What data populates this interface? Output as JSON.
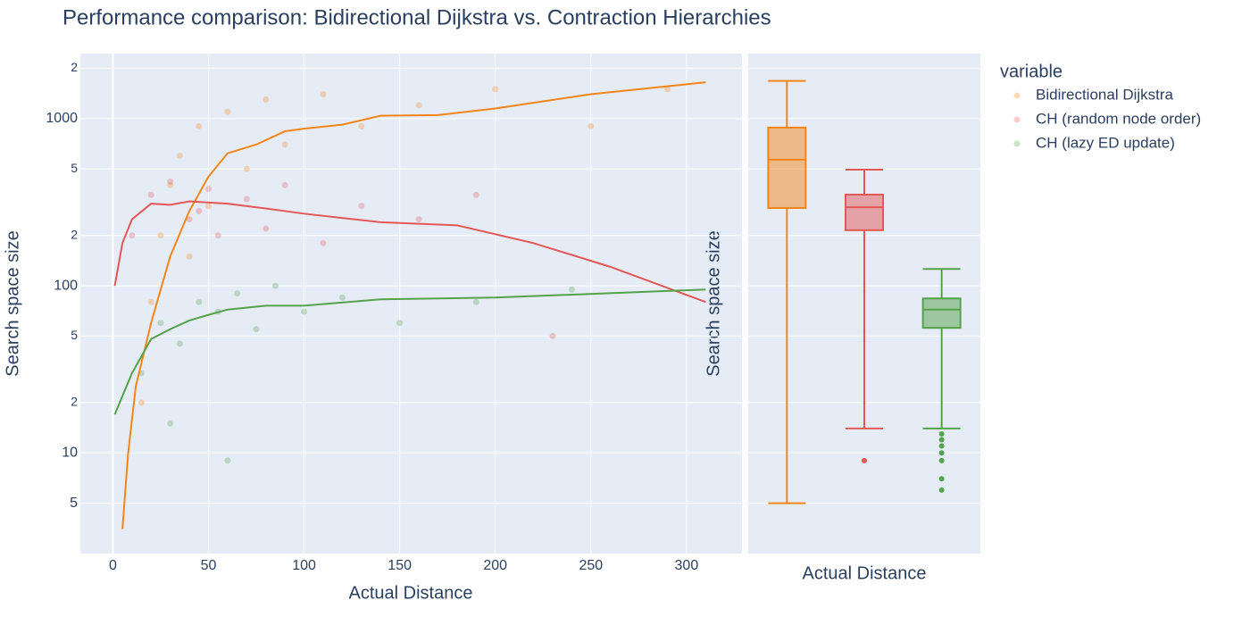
{
  "chart_data": [
    {
      "type": "scatter",
      "title": "Performance comparison: Bidirectional Dijkstra vs. Contraction Hierarchies",
      "xlabel": "Actual Distance",
      "ylabel": "Search space size",
      "legend_title": "variable",
      "legend": "top-right",
      "log_y": true,
      "grid": true,
      "xlim": [
        -17,
        329
      ],
      "xticks": [
        0,
        50,
        100,
        150,
        200,
        250,
        300
      ],
      "ylim": [
        2.5,
        2450
      ],
      "yticks": [
        5,
        10,
        {
          "value": 20,
          "label": "2"
        },
        {
          "value": 50,
          "label": "5"
        },
        100,
        {
          "value": 200,
          "label": "2"
        },
        {
          "value": 500,
          "label": "5"
        },
        1000,
        {
          "value": 2000,
          "label": "2"
        }
      ],
      "series": [
        {
          "name": "Bidirectional Dijkstra",
          "color": "#F58518",
          "x": [
            20,
            25,
            30,
            35,
            45,
            50,
            60,
            70,
            80,
            90,
            110,
            130,
            160,
            200,
            250,
            290,
            15,
            40
          ],
          "values": [
            80,
            200,
            400,
            600,
            900,
            300,
            1100,
            500,
            1300,
            700,
            1400,
            900,
            1200,
            1500,
            900,
            1500,
            20,
            150
          ],
          "trend_x": [
            5,
            8,
            12,
            20,
            30,
            40,
            50,
            60,
            75,
            90,
            100,
            120,
            140,
            170,
            200,
            250,
            310
          ],
          "trend_values": [
            3.5,
            10,
            25,
            60,
            150,
            280,
            450,
            620,
            700,
            840,
            870,
            920,
            1040,
            1050,
            1150,
            1400,
            1650
          ]
        },
        {
          "name": "CH (random node order)",
          "color": "#E45756",
          "x": [
            10,
            20,
            30,
            40,
            50,
            55,
            70,
            90,
            110,
            130,
            160,
            190,
            230,
            45,
            80
          ],
          "values": [
            200,
            350,
            420,
            250,
            380,
            200,
            330,
            400,
            180,
            300,
            250,
            350,
            50,
            280,
            220
          ],
          "trend_x": [
            1,
            5,
            10,
            20,
            30,
            40,
            60,
            80,
            100,
            140,
            180,
            220,
            260,
            310
          ],
          "trend_values": [
            100,
            180,
            250,
            310,
            305,
            320,
            310,
            290,
            270,
            240,
            230,
            180,
            130,
            80
          ]
        },
        {
          "name": "CH (lazy ED update)",
          "color": "#54A24B",
          "x": [
            15,
            25,
            35,
            45,
            55,
            65,
            75,
            85,
            100,
            120,
            150,
            190,
            240,
            60,
            30
          ],
          "values": [
            30,
            60,
            45,
            80,
            70,
            90,
            55,
            100,
            70,
            85,
            60,
            80,
            95,
            9,
            15
          ],
          "trend_x": [
            1,
            10,
            20,
            30,
            40,
            50,
            60,
            80,
            100,
            140,
            200,
            310
          ],
          "trend_values": [
            17,
            30,
            48,
            55,
            62,
            67,
            72,
            76,
            76,
            83,
            85,
            95
          ]
        }
      ]
    },
    {
      "type": "box",
      "xlabel": "Actual Distance",
      "ylabel": "Search space size",
      "log_y": true,
      "grid": true,
      "ylim": [
        2.5,
        2450
      ],
      "yticks": [
        5,
        10,
        20,
        50,
        100,
        200,
        500,
        1000,
        2000
      ],
      "series": [
        {
          "name": "Bidirectional Dijkstra",
          "color": "#F58518",
          "min": 5,
          "q1": 292,
          "median": 568,
          "q3": 884,
          "max": 1680,
          "outliers": []
        },
        {
          "name": "CH (random node order)",
          "color": "#E45756",
          "min": 14,
          "q1": 215,
          "median": 295,
          "q3": 351,
          "max": 495,
          "outliers": [
            9
          ]
        },
        {
          "name": "CH (lazy ED update)",
          "color": "#54A24B",
          "min": 14,
          "q1": 56,
          "median": 72,
          "q3": 84,
          "max": 126,
          "outliers": [
            13,
            12,
            11,
            10,
            9,
            7,
            6
          ]
        }
      ]
    }
  ]
}
